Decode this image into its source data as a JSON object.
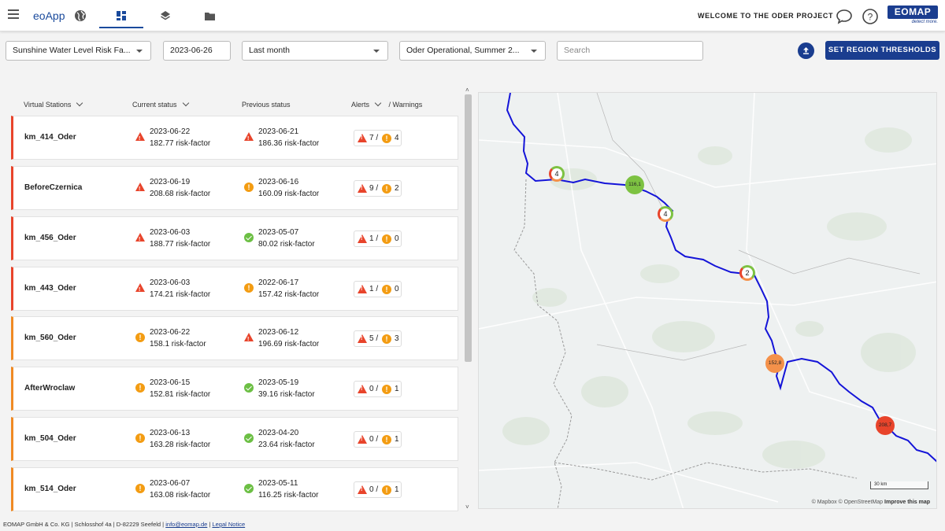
{
  "app": {
    "name": "eoApp",
    "welcome": "WELCOME TO THE ODER PROJECT",
    "logo": "EOMAP",
    "logo_tag": "detect more."
  },
  "nav": {
    "icons": [
      "globe-icon",
      "dashboard-icon",
      "layers-icon",
      "folder-icon"
    ],
    "active": "dashboard"
  },
  "filters": {
    "indicator": "Sunshine Water Level Risk Fa...",
    "date": "2023-06-26",
    "period": "Last month",
    "region": "Oder Operational, Summer 2...",
    "search_placeholder": "Search"
  },
  "buttons": {
    "thresholds": "SET REGION THRESHOLDS"
  },
  "table": {
    "headers": {
      "stations": "Virtual Stations",
      "current": "Current status",
      "previous": "Previous status",
      "alerts": "Alerts",
      "warnings": "/ Warnings"
    },
    "unit": "risk-factor",
    "rows": [
      {
        "name": "km_414_Oder",
        "cur_date": "2023-06-22",
        "cur_val": "182.77 risk-factor",
        "cur_icon": "alert",
        "prev_date": "2023-06-21",
        "prev_val": "186.36 risk-factor",
        "prev_icon": "alert",
        "alerts": "7",
        "warnings": "4",
        "bar_color": "#e8442b"
      },
      {
        "name": "BeforeCzernica",
        "cur_date": "2023-06-19",
        "cur_val": "208.68 risk-factor",
        "cur_icon": "alert",
        "prev_date": "2023-06-16",
        "prev_val": "160.09 risk-factor",
        "prev_icon": "warning",
        "alerts": "9",
        "warnings": "2",
        "bar_color": "#e8442b"
      },
      {
        "name": "km_456_Oder",
        "cur_date": "2023-06-03",
        "cur_val": "188.77 risk-factor",
        "cur_icon": "alert",
        "prev_date": "2023-05-07",
        "prev_val": "80.02 risk-factor",
        "prev_icon": "ok",
        "alerts": "1",
        "warnings": "0",
        "bar_color": "#e8442b"
      },
      {
        "name": "km_443_Oder",
        "cur_date": "2023-06-03",
        "cur_val": "174.21 risk-factor",
        "cur_icon": "alert",
        "prev_date": "2022-06-17",
        "prev_val": "157.42 risk-factor",
        "prev_icon": "warning",
        "alerts": "1",
        "warnings": "0",
        "bar_color": "#e8442b"
      },
      {
        "name": "km_560_Oder",
        "cur_date": "2023-06-22",
        "cur_val": "158.1 risk-factor",
        "cur_icon": "warning",
        "prev_date": "2023-06-12",
        "prev_val": "196.69 risk-factor",
        "prev_icon": "alert",
        "alerts": "5",
        "warnings": "3",
        "bar_color": "#f08a24"
      },
      {
        "name": "AfterWroclaw",
        "cur_date": "2023-06-15",
        "cur_val": "152.81 risk-factor",
        "cur_icon": "warning",
        "prev_date": "2023-05-19",
        "prev_val": "39.16 risk-factor",
        "prev_icon": "ok",
        "alerts": "0",
        "warnings": "1",
        "bar_color": "#f08a24"
      },
      {
        "name": "km_504_Oder",
        "cur_date": "2023-06-13",
        "cur_val": "163.28 risk-factor",
        "cur_icon": "warning",
        "prev_date": "2023-04-20",
        "prev_val": "23.64 risk-factor",
        "prev_icon": "ok",
        "alerts": "0",
        "warnings": "1",
        "bar_color": "#f08a24"
      },
      {
        "name": "km_514_Oder",
        "cur_date": "2023-06-07",
        "cur_val": "163.08 risk-factor",
        "cur_icon": "warning",
        "prev_date": "2023-05-11",
        "prev_val": "116.25 risk-factor",
        "prev_icon": "ok",
        "alerts": "0",
        "warnings": "1",
        "bar_color": "#f08a24"
      }
    ]
  },
  "map": {
    "markers": [
      {
        "label": "4",
        "kind": "cluster"
      },
      {
        "label": "116,1",
        "kind": "value",
        "color": "#7dc242"
      },
      {
        "label": "4",
        "kind": "cluster"
      },
      {
        "label": "2",
        "kind": "cluster"
      },
      {
        "label": "152,8",
        "kind": "value",
        "color": "#f4914a"
      },
      {
        "label": "208,7",
        "kind": "value",
        "color": "#e8442b"
      }
    ],
    "scale": "30 km",
    "attribution": "© Mapbox © OpenStreetMap",
    "improve": "Improve this map"
  },
  "footer": {
    "company": "EOMAP GmbH & Co. KG | Schlosshof 4a | D-82229 Seefeld |",
    "email": "info@eomap.de",
    "sep": "|",
    "legal": "Legal Notice"
  },
  "colors": {
    "brand": "#1a3d8f",
    "alert": "#e8442b",
    "warning": "#f39c12",
    "ok": "#6cbf44",
    "river": "#1414d8"
  }
}
